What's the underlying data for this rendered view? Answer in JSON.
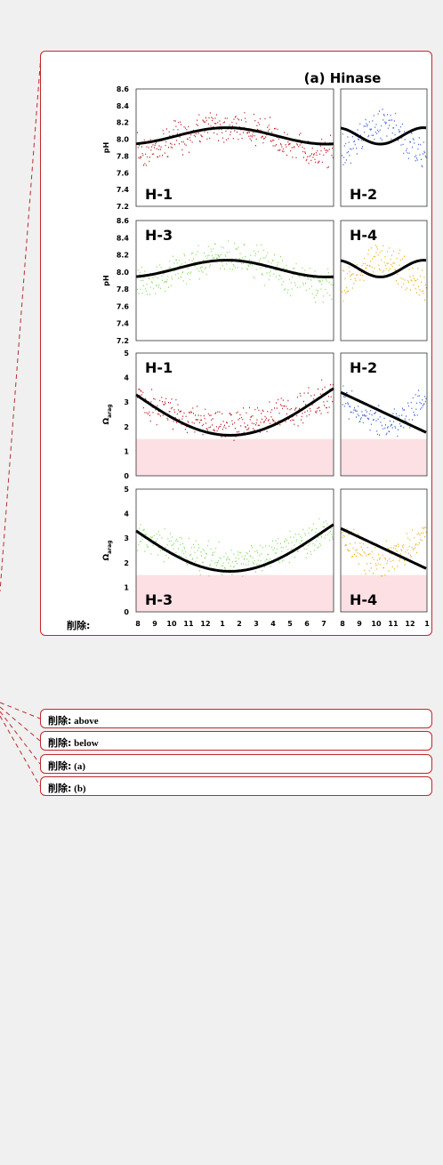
{
  "figure_comment": {
    "label": "削除:",
    "figure": {
      "title": "(a) Hinase",
      "ph_label": "pH",
      "omega_label": "Ω",
      "omega_subscript": "arag",
      "ph_ticks": [
        "8.6",
        "8.4",
        "8.2",
        "8.0",
        "7.8",
        "7.6",
        "7.4",
        "7.2"
      ],
      "omega_ticks": [
        "5",
        "4",
        "3",
        "2",
        "1",
        "0"
      ],
      "panels": [
        "H-1",
        "H-2",
        "H-3",
        "H-4",
        "H-1",
        "H-2",
        "H-3",
        "H-4"
      ],
      "x_ticks_left": [
        "8",
        "9",
        "10",
        "11",
        "12",
        "1",
        "2",
        "3",
        "4",
        "5",
        "6",
        "7"
      ],
      "x_ticks_right": [
        "8",
        "9",
        "10",
        "11",
        "12",
        "1"
      ]
    }
  },
  "comments": [
    {
      "label": "削除:",
      "text": "above"
    },
    {
      "label": "削除:",
      "text": "below"
    },
    {
      "label": "削除:",
      "text": "(a)"
    },
    {
      "label": "削除:",
      "text": "(b)"
    }
  ]
}
